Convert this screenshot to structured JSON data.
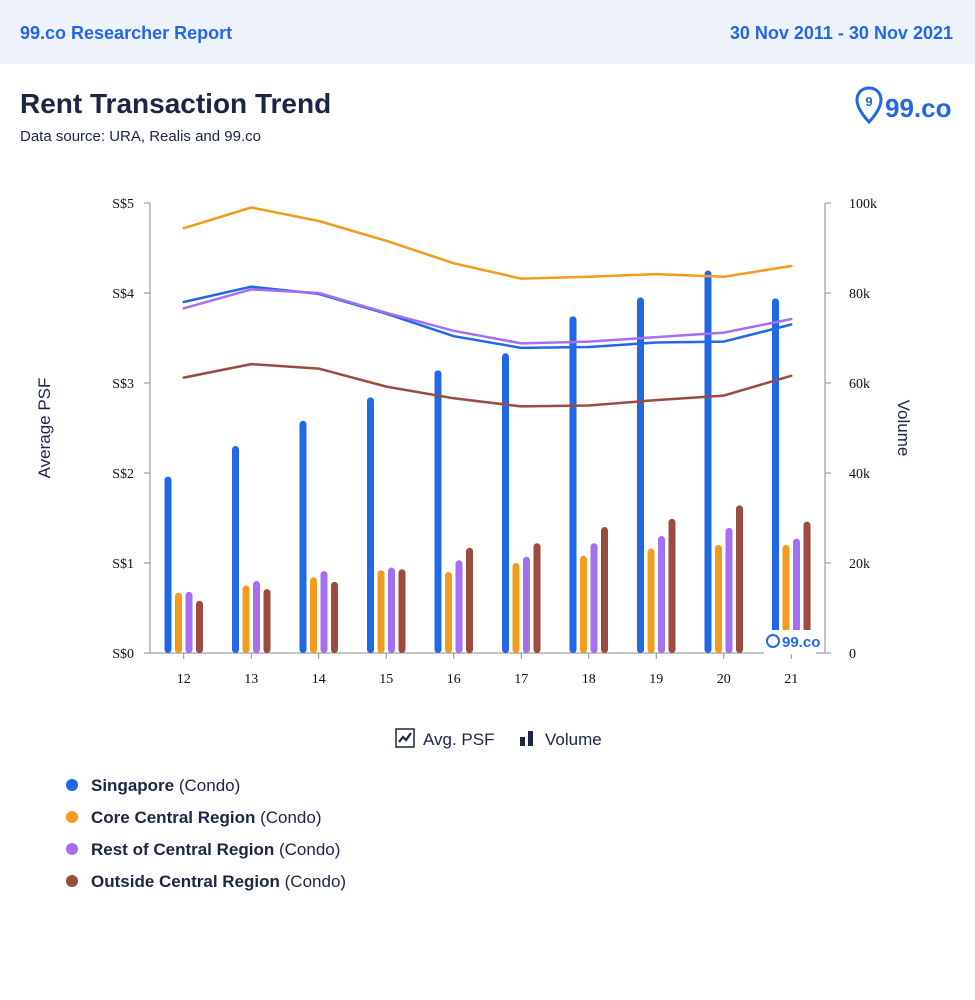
{
  "header": {
    "brand": "99.co Researcher Report",
    "date_range": "30 Nov 2011 - 30 Nov 2021"
  },
  "report": {
    "title": "Rent Transaction Trend",
    "source": "Data source: URA, Realis and 99.co",
    "logo_text": "99.co"
  },
  "toggles": {
    "avg_psf_label": "Avg. PSF",
    "volume_label": "Volume"
  },
  "legend": [
    {
      "name": "Singapore",
      "suffix": "(Condo)",
      "color": "#2168e6"
    },
    {
      "name": "Core Central Region",
      "suffix": "(Condo)",
      "color": "#f29b1d"
    },
    {
      "name": "Rest of Central Region",
      "suffix": "(Condo)",
      "color": "#a66ef0"
    },
    {
      "name": "Outside Central Region",
      "suffix": "(Condo)",
      "color": "#9b4b3f"
    }
  ],
  "chart_data": {
    "type": "bar",
    "categories": [
      "12",
      "13",
      "14",
      "15",
      "16",
      "17",
      "18",
      "19",
      "20",
      "21"
    ],
    "ylabel": "Average PSF",
    "ylabel_right": "Volume",
    "ylim": [
      0,
      5
    ],
    "ylim_right": [
      0,
      100000
    ],
    "y_ticks": [
      "S$0",
      "S$1",
      "S$2",
      "S$3",
      "S$4",
      "S$5"
    ],
    "y_right_ticks": [
      "0",
      "20k",
      "40k",
      "60k",
      "80k",
      "100k"
    ],
    "line_series": [
      {
        "name": "Singapore",
        "color": "#2168e6",
        "values": [
          3.9,
          4.07,
          3.99,
          3.77,
          3.52,
          3.39,
          3.4,
          3.45,
          3.46,
          3.65
        ]
      },
      {
        "name": "Core Central Region",
        "color": "#f29b1d",
        "values": [
          4.72,
          4.95,
          4.8,
          4.58,
          4.33,
          4.16,
          4.18,
          4.21,
          4.18,
          4.3
        ]
      },
      {
        "name": "Rest of Central Region",
        "color": "#a66ef0",
        "values": [
          3.83,
          4.04,
          4.0,
          3.78,
          3.58,
          3.44,
          3.46,
          3.51,
          3.56,
          3.71
        ]
      },
      {
        "name": "Outside Central Region",
        "color": "#9b4b3f",
        "values": [
          3.06,
          3.21,
          3.16,
          2.96,
          2.83,
          2.74,
          2.75,
          2.81,
          2.86,
          3.08
        ]
      }
    ],
    "bar_series": [
      {
        "name": "Singapore",
        "color": "#2168e6",
        "values": [
          39200,
          46000,
          51600,
          56800,
          62800,
          66600,
          74800,
          79000,
          85000,
          78800
        ]
      },
      {
        "name": "Core Central Region",
        "color": "#f29b1d",
        "values": [
          13400,
          15000,
          16800,
          18400,
          18000,
          20000,
          21600,
          23200,
          24000,
          24000
        ]
      },
      {
        "name": "Rest of Central Region",
        "color": "#a66ef0",
        "values": [
          13600,
          16000,
          18200,
          19000,
          20600,
          21400,
          24400,
          26000,
          27800,
          25400
        ]
      },
      {
        "name": "Outside Central Region",
        "color": "#9b4b3f",
        "values": [
          11600,
          14200,
          15800,
          18600,
          23400,
          24400,
          28000,
          29800,
          32800,
          29200
        ]
      }
    ],
    "grid": false,
    "legend_position": "bottom-left"
  }
}
